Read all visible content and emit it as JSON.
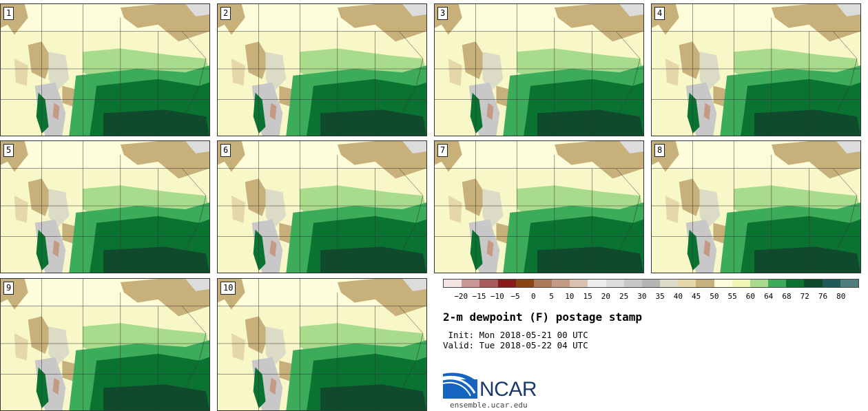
{
  "panels": [
    {
      "label": "1"
    },
    {
      "label": "2"
    },
    {
      "label": "3"
    },
    {
      "label": "4"
    },
    {
      "label": "5"
    },
    {
      "label": "6"
    },
    {
      "label": "7"
    },
    {
      "label": "8"
    },
    {
      "label": "9"
    },
    {
      "label": "10"
    }
  ],
  "colorbar": {
    "ticks": [
      "−20",
      "−15",
      "−10",
      "−5",
      "0",
      "5",
      "10",
      "15",
      "20",
      "25",
      "30",
      "35",
      "40",
      "45",
      "50",
      "55",
      "60",
      "64",
      "68",
      "72",
      "76",
      "80"
    ],
    "colors": [
      "#f3e3e3",
      "#c99595",
      "#a75a5a",
      "#8b1a1a",
      "#8b4513",
      "#ab7a5a",
      "#c49a85",
      "#d9c2b0",
      "#ececec",
      "#dcdcdc",
      "#c8c8c8",
      "#b5b5b5",
      "#dcdcc6",
      "#e6d7a8",
      "#c8b07a",
      "#fdfddc",
      "#f0f5b4",
      "#a8dc8c",
      "#3cac5a",
      "#0a7332",
      "#104a2c",
      "#1e5a5a",
      "#4e7d7d"
    ]
  },
  "title": "2-m dewpoint (F) postage stamp",
  "init": " Init: Mon 2018-05-21 00 UTC",
  "valid": "Valid: Tue 2018-05-22 04 UTC",
  "logo": {
    "text": "NCAR",
    "site": "ensemble.ucar.edu"
  }
}
